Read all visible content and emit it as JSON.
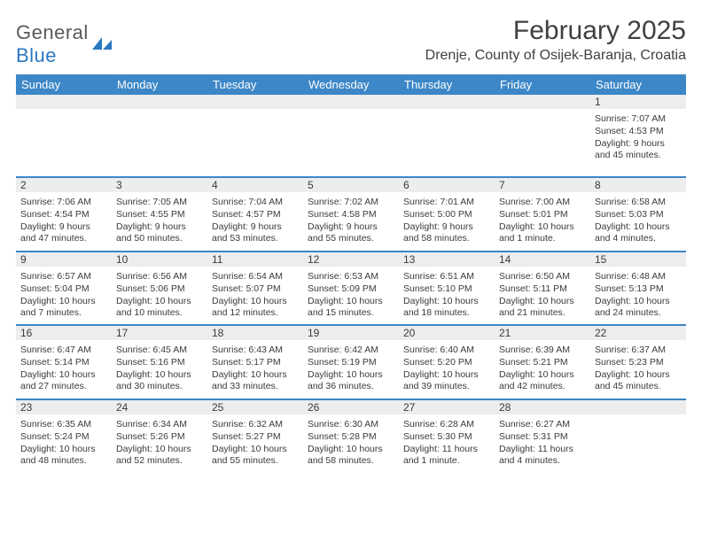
{
  "logo": {
    "word1": "General",
    "word2": "Blue"
  },
  "title": "February 2025",
  "location": "Drenje, County of Osijek-Baranja, Croatia",
  "colors": {
    "header_bg": "#3c87c7",
    "header_text": "#ffffff",
    "daynum_bg": "#ededed",
    "row_border": "#3c87c7",
    "text": "#3b3b3b",
    "logo_gray": "#5a5a5a",
    "logo_blue": "#2b78c2",
    "page_bg": "#ffffff"
  },
  "typography": {
    "title_fontsize": 30,
    "location_fontsize": 16,
    "dayhead_fontsize": 13,
    "cell_fontsize": 10.5,
    "logo_fontsize": 22
  },
  "day_headers": [
    "Sunday",
    "Monday",
    "Tuesday",
    "Wednesday",
    "Thursday",
    "Friday",
    "Saturday"
  ],
  "weeks": [
    [
      null,
      null,
      null,
      null,
      null,
      null,
      {
        "n": "1",
        "sr": "7:07 AM",
        "ss": "4:53 PM",
        "dl": "9 hours and 45 minutes."
      }
    ],
    [
      {
        "n": "2",
        "sr": "7:06 AM",
        "ss": "4:54 PM",
        "dl": "9 hours and 47 minutes."
      },
      {
        "n": "3",
        "sr": "7:05 AM",
        "ss": "4:55 PM",
        "dl": "9 hours and 50 minutes."
      },
      {
        "n": "4",
        "sr": "7:04 AM",
        "ss": "4:57 PM",
        "dl": "9 hours and 53 minutes."
      },
      {
        "n": "5",
        "sr": "7:02 AM",
        "ss": "4:58 PM",
        "dl": "9 hours and 55 minutes."
      },
      {
        "n": "6",
        "sr": "7:01 AM",
        "ss": "5:00 PM",
        "dl": "9 hours and 58 minutes."
      },
      {
        "n": "7",
        "sr": "7:00 AM",
        "ss": "5:01 PM",
        "dl": "10 hours and 1 minute."
      },
      {
        "n": "8",
        "sr": "6:58 AM",
        "ss": "5:03 PM",
        "dl": "10 hours and 4 minutes."
      }
    ],
    [
      {
        "n": "9",
        "sr": "6:57 AM",
        "ss": "5:04 PM",
        "dl": "10 hours and 7 minutes."
      },
      {
        "n": "10",
        "sr": "6:56 AM",
        "ss": "5:06 PM",
        "dl": "10 hours and 10 minutes."
      },
      {
        "n": "11",
        "sr": "6:54 AM",
        "ss": "5:07 PM",
        "dl": "10 hours and 12 minutes."
      },
      {
        "n": "12",
        "sr": "6:53 AM",
        "ss": "5:09 PM",
        "dl": "10 hours and 15 minutes."
      },
      {
        "n": "13",
        "sr": "6:51 AM",
        "ss": "5:10 PM",
        "dl": "10 hours and 18 minutes."
      },
      {
        "n": "14",
        "sr": "6:50 AM",
        "ss": "5:11 PM",
        "dl": "10 hours and 21 minutes."
      },
      {
        "n": "15",
        "sr": "6:48 AM",
        "ss": "5:13 PM",
        "dl": "10 hours and 24 minutes."
      }
    ],
    [
      {
        "n": "16",
        "sr": "6:47 AM",
        "ss": "5:14 PM",
        "dl": "10 hours and 27 minutes."
      },
      {
        "n": "17",
        "sr": "6:45 AM",
        "ss": "5:16 PM",
        "dl": "10 hours and 30 minutes."
      },
      {
        "n": "18",
        "sr": "6:43 AM",
        "ss": "5:17 PM",
        "dl": "10 hours and 33 minutes."
      },
      {
        "n": "19",
        "sr": "6:42 AM",
        "ss": "5:19 PM",
        "dl": "10 hours and 36 minutes."
      },
      {
        "n": "20",
        "sr": "6:40 AM",
        "ss": "5:20 PM",
        "dl": "10 hours and 39 minutes."
      },
      {
        "n": "21",
        "sr": "6:39 AM",
        "ss": "5:21 PM",
        "dl": "10 hours and 42 minutes."
      },
      {
        "n": "22",
        "sr": "6:37 AM",
        "ss": "5:23 PM",
        "dl": "10 hours and 45 minutes."
      }
    ],
    [
      {
        "n": "23",
        "sr": "6:35 AM",
        "ss": "5:24 PM",
        "dl": "10 hours and 48 minutes."
      },
      {
        "n": "24",
        "sr": "6:34 AM",
        "ss": "5:26 PM",
        "dl": "10 hours and 52 minutes."
      },
      {
        "n": "25",
        "sr": "6:32 AM",
        "ss": "5:27 PM",
        "dl": "10 hours and 55 minutes."
      },
      {
        "n": "26",
        "sr": "6:30 AM",
        "ss": "5:28 PM",
        "dl": "10 hours and 58 minutes."
      },
      {
        "n": "27",
        "sr": "6:28 AM",
        "ss": "5:30 PM",
        "dl": "11 hours and 1 minute."
      },
      {
        "n": "28",
        "sr": "6:27 AM",
        "ss": "5:31 PM",
        "dl": "11 hours and 4 minutes."
      },
      null
    ]
  ],
  "labels": {
    "sunrise": "Sunrise:",
    "sunset": "Sunset:",
    "daylight": "Daylight:"
  }
}
